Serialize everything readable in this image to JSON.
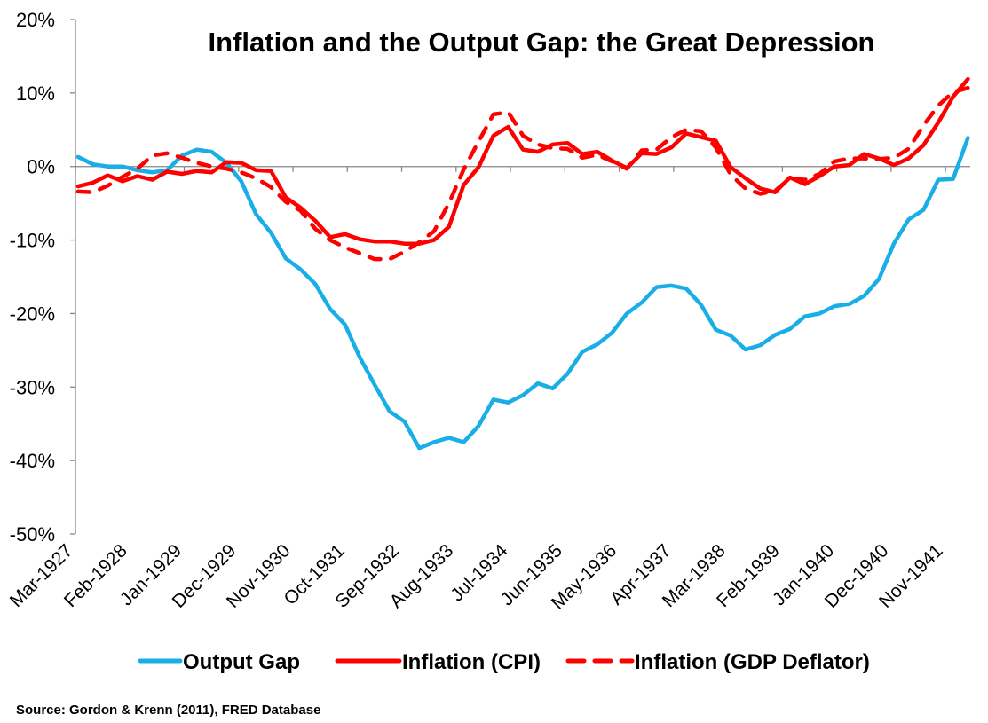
{
  "chart_data": {
    "type": "line",
    "title": "Inflation and the Output Gap: the Great Depression",
    "xlabel": "",
    "ylabel": "",
    "ylim": [
      -50,
      20
    ],
    "y_ticks": [
      "20%",
      "10%",
      "0%",
      "-10%",
      "-20%",
      "-30%",
      "-40%",
      "-50%"
    ],
    "y_tick_values": [
      20,
      10,
      0,
      -10,
      -20,
      -30,
      -40,
      -50
    ],
    "y_unit": "%",
    "x_tick_labels": [
      "Mar-1927",
      "Feb-1928",
      "Jan-1929",
      "Dec-1929",
      "Nov-1930",
      "Oct-1931",
      "Sep-1932",
      "Aug-1933",
      "Jul-1934",
      "Jun-1935",
      "May-1936",
      "Apr-1937",
      "Mar-1938",
      "Feb-1939",
      "Jan-1940",
      "Dec-1940",
      "Nov-1941"
    ],
    "grid": false,
    "legend_position": "bottom",
    "x": [
      "1927-03",
      "1927-06",
      "1927-09",
      "1927-12",
      "1928-03",
      "1928-06",
      "1928-09",
      "1928-12",
      "1929-03",
      "1929-06",
      "1929-09",
      "1929-12",
      "1930-03",
      "1930-06",
      "1930-09",
      "1930-12",
      "1931-03",
      "1931-06",
      "1931-09",
      "1931-12",
      "1932-03",
      "1932-06",
      "1932-09",
      "1932-12",
      "1933-03",
      "1933-06",
      "1933-09",
      "1933-12",
      "1934-03",
      "1934-06",
      "1934-09",
      "1934-12",
      "1935-03",
      "1935-06",
      "1935-09",
      "1935-12",
      "1936-03",
      "1936-06",
      "1936-09",
      "1936-12",
      "1937-03",
      "1937-06",
      "1937-09",
      "1937-12",
      "1938-03",
      "1938-06",
      "1938-09",
      "1938-12",
      "1939-03",
      "1939-06",
      "1939-09",
      "1939-12",
      "1940-03",
      "1940-06",
      "1940-09",
      "1940-12",
      "1941-03",
      "1941-06",
      "1941-09",
      "1941-12",
      "1942-03"
    ],
    "series": [
      {
        "name": "Output Gap",
        "color": "#1AAEE6",
        "style": "solid",
        "values": [
          1.3,
          0.3,
          0,
          0,
          -0.5,
          -0.8,
          -0.5,
          1.5,
          2.3,
          2.0,
          0.5,
          -2.0,
          -6.5,
          -9.0,
          -12.5,
          -14.0,
          -16.0,
          -19.4,
          -21.5,
          -26.0,
          -29.7,
          -33.3,
          -34.7,
          -38.3,
          -37.5,
          -36.9,
          -37.5,
          -35.3,
          -31.7,
          -32.1,
          -31.1,
          -29.5,
          -30.2,
          -28.2,
          -25.2,
          -24.2,
          -22.6,
          -20.0,
          -18.5,
          -16.4,
          -16.2,
          -16.6,
          -18.8,
          -22.2,
          -23.0,
          -24.9,
          -24.3,
          -22.9,
          -22.1,
          -20.4,
          -20.0,
          -19.0,
          -18.7,
          -17.6,
          -15.3,
          -10.5,
          -7.2,
          -5.9,
          -1.8,
          -1.7,
          3.9
        ]
      },
      {
        "name": "Inflation (CPI)",
        "color": "#FF0000",
        "style": "solid",
        "values": [
          -2.7,
          -2.2,
          -1.2,
          -2.0,
          -1.3,
          -1.8,
          -0.7,
          -1.0,
          -0.6,
          -0.8,
          0.6,
          0.5,
          -0.5,
          -0.6,
          -4.2,
          -5.6,
          -7.4,
          -9.6,
          -9.2,
          -9.9,
          -10.2,
          -10.2,
          -10.5,
          -10.5,
          -10.0,
          -8.2,
          -2.5,
          -0.1,
          4.2,
          5.4,
          2.3,
          2.0,
          3.0,
          3.2,
          1.7,
          2.0,
          0.8,
          -0.2,
          1.8,
          1.7,
          2.6,
          4.5,
          4.0,
          3.5,
          -0.1,
          -1.6,
          -3.0,
          -3.5,
          -1.5,
          -2.4,
          -1.3,
          0,
          0.2,
          1.7,
          1.1,
          0.2,
          1.1,
          2.9,
          6.0,
          9.5,
          11.9
        ]
      },
      {
        "name": "Inflation (GDP Deflator)",
        "color": "#FF0000",
        "style": "dashed",
        "values": [
          -3.4,
          -3.5,
          -2.6,
          -1.4,
          -0.3,
          1.5,
          1.8,
          1.2,
          0.5,
          0,
          -0.3,
          -0.8,
          -1.6,
          -2.8,
          -4.8,
          -6.0,
          -8.5,
          -10.0,
          -11.0,
          -11.8,
          -12.6,
          -12.6,
          -11.6,
          -10.3,
          -8.8,
          -5.0,
          -0.4,
          3.4,
          7.1,
          7.4,
          4.2,
          3.0,
          2.5,
          2.4,
          1.2,
          1.6,
          0.7,
          -0.3,
          2.2,
          2.3,
          4.0,
          5.0,
          4.8,
          2.6,
          -1.1,
          -3.0,
          -3.7,
          -3.3,
          -1.6,
          -1.8,
          -1.0,
          0.7,
          1.1,
          1.1,
          1.0,
          1.2,
          2.4,
          5.6,
          8.3,
          10.1,
          10.7
        ]
      }
    ]
  },
  "source": "Source: Gordon & Krenn (2011), FRED Database"
}
